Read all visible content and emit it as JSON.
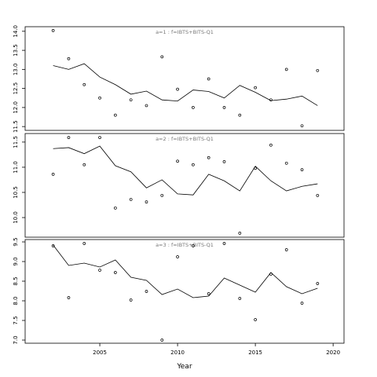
{
  "chart_data": [
    {
      "type": "line",
      "title": "a=1 : f=IBTS+BITS-Q1",
      "x": [
        2002,
        2003,
        2004,
        2005,
        2006,
        2007,
        2008,
        2009,
        2010,
        2011,
        2012,
        2013,
        2014,
        2015,
        2016,
        2017,
        2018,
        2019
      ],
      "xlim": [
        2000.2,
        2020.7
      ],
      "ylim": [
        11.4,
        14.12
      ],
      "yticks": [
        11.5,
        {
          "value": 12,
          "label": "12.0"
        },
        12.5,
        {
          "value": 13,
          "label": "13.0"
        },
        13.5,
        {
          "value": 14,
          "label": "14.0"
        }
      ],
      "series": [
        {
          "style": "points",
          "color": "#000000",
          "values": [
            14.02,
            13.28,
            12.6,
            12.25,
            11.8,
            12.2,
            12.05,
            13.33,
            12.48,
            12.0,
            12.75,
            12.0,
            11.8,
            12.52,
            12.2,
            13.0,
            11.52,
            12.97
          ]
        },
        {
          "style": "line",
          "color": "#000000",
          "values": [
            13.1,
            13.0,
            13.15,
            12.8,
            12.6,
            12.35,
            12.43,
            12.2,
            12.17,
            12.46,
            12.42,
            12.25,
            12.58,
            12.4,
            12.18,
            12.22,
            12.3,
            12.05
          ]
        }
      ]
    },
    {
      "type": "line",
      "title": "a=2 : f=IBTS+BITS-Q1",
      "x": [
        2002,
        2003,
        2004,
        2005,
        2006,
        2007,
        2008,
        2009,
        2010,
        2011,
        2012,
        2013,
        2014,
        2015,
        2016,
        2017,
        2018,
        2019
      ],
      "xlim": [
        2000.2,
        2020.7
      ],
      "ylim": [
        9.61,
        11.67
      ],
      "yticks": [
        {
          "value": 10,
          "label": "10.0"
        },
        10.5,
        {
          "value": 11,
          "label": "11.0"
        },
        11.5
      ],
      "series": [
        {
          "style": "points",
          "color": "#000000",
          "values": [
            10.86,
            11.59,
            11.05,
            11.59,
            10.19,
            10.36,
            10.31,
            10.44,
            11.12,
            11.05,
            11.19,
            11.11,
            9.69,
            10.98,
            11.44,
            11.08,
            10.95,
            10.44
          ]
        },
        {
          "style": "line",
          "color": "#000000",
          "values": [
            11.37,
            11.39,
            11.27,
            11.42,
            11.03,
            10.91,
            10.59,
            10.75,
            10.47,
            10.45,
            10.86,
            10.73,
            10.53,
            11.02,
            10.73,
            10.53,
            10.62,
            10.67
          ]
        }
      ]
    },
    {
      "type": "line",
      "title": "a=3 : f=IBTS+BITS-Q1",
      "x": [
        2002,
        2003,
        2004,
        2005,
        2006,
        2007,
        2008,
        2009,
        2010,
        2011,
        2012,
        2013,
        2014,
        2015,
        2016,
        2017,
        2018,
        2019
      ],
      "xlim": [
        2000.2,
        2020.7
      ],
      "xticks": [
        2005,
        2010,
        2015,
        2020
      ],
      "xlabel": "Year",
      "ylim": [
        6.92,
        9.56
      ],
      "yticks": [
        {
          "value": 7,
          "label": "7.0"
        },
        7.5,
        {
          "value": 8,
          "label": "8.0"
        },
        8.5,
        {
          "value": 9,
          "label": "9.0"
        },
        9.5
      ],
      "series": [
        {
          "style": "points",
          "color": "#000000",
          "values": [
            9.4,
            8.08,
            9.46,
            8.78,
            8.72,
            8.02,
            8.24,
            7.0,
            9.12,
            9.4,
            8.18,
            9.46,
            8.06,
            7.52,
            8.68,
            9.3,
            7.94,
            8.44
          ]
        },
        {
          "style": "line",
          "color": "#000000",
          "values": [
            9.42,
            8.9,
            8.96,
            8.86,
            9.04,
            8.6,
            8.52,
            8.16,
            8.3,
            8.08,
            8.12,
            8.58,
            8.4,
            8.22,
            8.72,
            8.36,
            8.18,
            8.32
          ]
        }
      ]
    }
  ]
}
